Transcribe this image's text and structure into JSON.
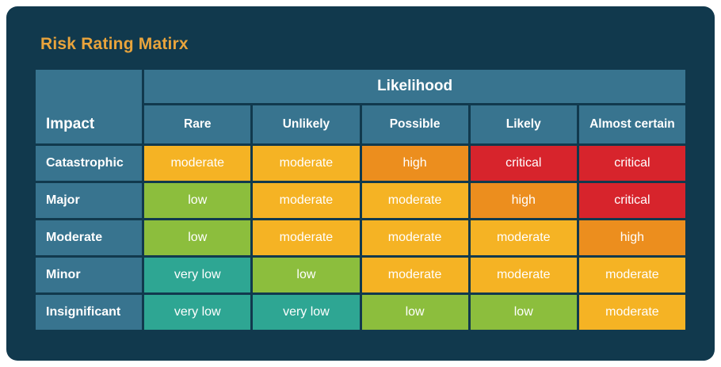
{
  "title": "Risk Rating Matirx",
  "chart_data": {
    "type": "heatmap",
    "title": "Risk Rating Matirx",
    "group_header": "Likelihood",
    "row_header": "Impact",
    "columns": [
      "Rare",
      "Unlikely",
      "Possible",
      "Likely",
      "Almost certain"
    ],
    "rows": [
      "Catastrophic",
      "Major",
      "Moderate",
      "Minor",
      "Insignificant"
    ],
    "cells": [
      [
        "moderate",
        "moderate",
        "high",
        "critical",
        "critical"
      ],
      [
        "low",
        "moderate",
        "moderate",
        "high",
        "critical"
      ],
      [
        "low",
        "moderate",
        "moderate",
        "moderate",
        "high"
      ],
      [
        "very low",
        "low",
        "moderate",
        "moderate",
        "moderate"
      ],
      [
        "very low",
        "very low",
        "low",
        "low",
        "moderate"
      ]
    ],
    "rating_scale": [
      "very low",
      "low",
      "moderate",
      "high",
      "critical"
    ],
    "legend": "none",
    "grid": "on"
  },
  "colors": {
    "page_bg": "#FFFFFF",
    "card_bg": "#11394D",
    "header_cell": "#38748F",
    "title": "#E9A43C",
    "cell_text": "#FFFFFF",
    "ratings": {
      "very low": "#2EA693",
      "low": "#8CBE3D",
      "moderate": "#F5B324",
      "high": "#EC8E1E",
      "critical": "#D7242C"
    }
  }
}
